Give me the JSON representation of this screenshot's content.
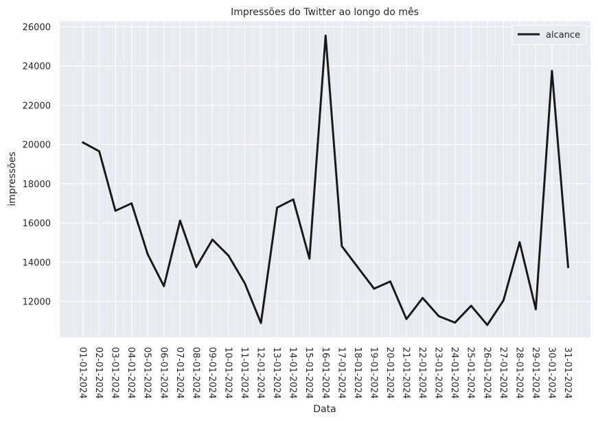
{
  "chart_data": {
    "type": "line",
    "title": "Impressões do Twitter ao longo do mês",
    "xlabel": "Data",
    "ylabel": "impressões",
    "x": [
      "01-01-2024",
      "02-01-2024",
      "03-01-2024",
      "04-01-2024",
      "05-01-2024",
      "06-01-2024",
      "07-01-2024",
      "08-01-2024",
      "09-01-2024",
      "10-01-2024",
      "11-01-2024",
      "12-01-2024",
      "13-01-2024",
      "14-01-2024",
      "15-01-2024",
      "16-01-2024",
      "17-01-2024",
      "18-01-2024",
      "19-01-2024",
      "20-01-2024",
      "21-01-2024",
      "22-01-2024",
      "23-01-2024",
      "24-01-2024",
      "25-01-2024",
      "26-01-2024",
      "27-01-2024",
      "28-01-2024",
      "29-01-2024",
      "30-01-2024",
      "31-01-2024"
    ],
    "series": [
      {
        "name": "alcance",
        "color": "#1a1a1a",
        "values": [
          20100,
          19650,
          16620,
          17000,
          14400,
          12780,
          16120,
          13750,
          15150,
          14330,
          12930,
          10900,
          16780,
          17200,
          14180,
          25550,
          14820,
          13730,
          12650,
          13020,
          11100,
          12180,
          11250,
          10920,
          11780,
          10800,
          12050,
          15020,
          11600,
          23750,
          13750
        ]
      }
    ],
    "yticks": [
      12000,
      14000,
      16000,
      18000,
      20000,
      22000,
      24000,
      26000
    ],
    "ytick_labels": [
      "12000",
      "14000",
      "16000",
      "18000",
      "20000",
      "22000",
      "24000",
      "26000"
    ],
    "ylim": [
      10170,
      26280
    ],
    "grid": true,
    "legend_position": "top-right",
    "background": "#eaeaf2",
    "grid_color": "#ffffff"
  }
}
